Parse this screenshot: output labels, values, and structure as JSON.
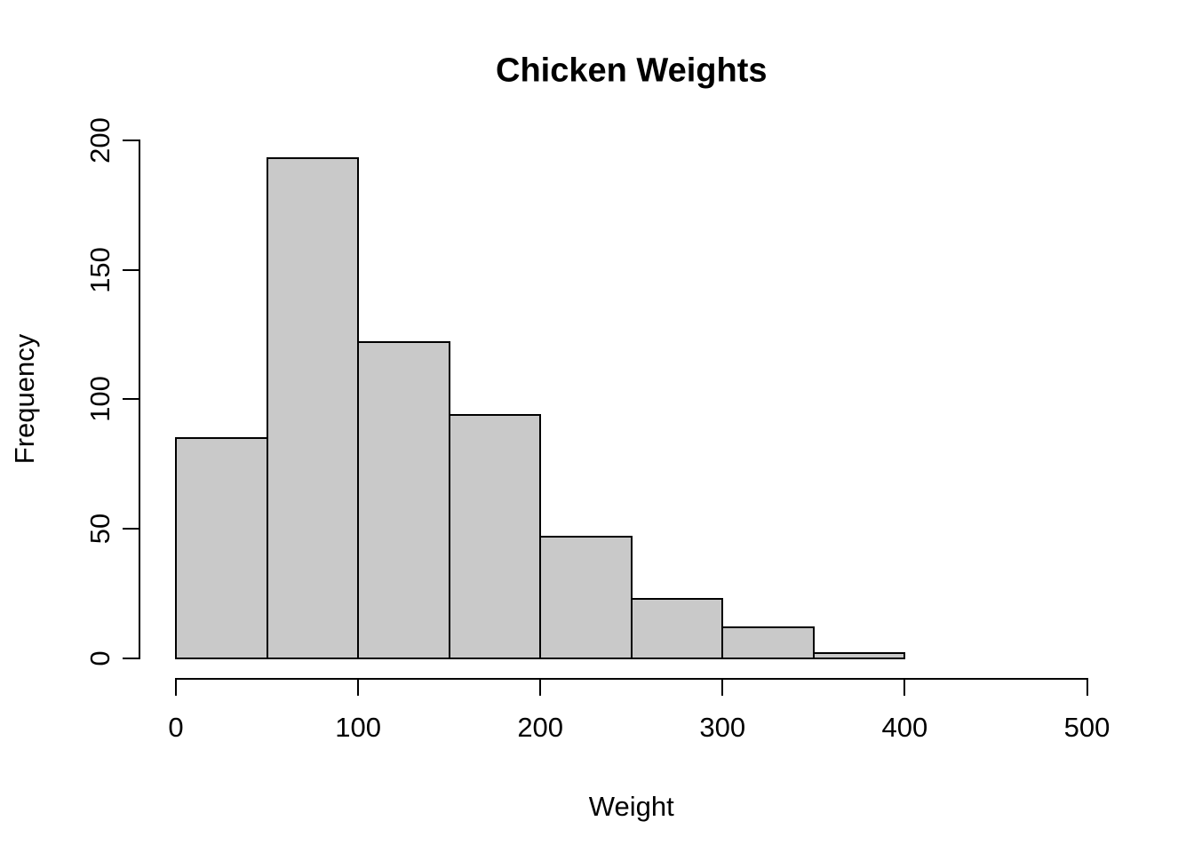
{
  "chart_data": {
    "type": "bar",
    "subtype": "histogram",
    "title": "Chicken Weights",
    "xlabel": "Weight",
    "ylabel": "Frequency",
    "bin_edges": [
      0,
      50,
      100,
      150,
      200,
      250,
      300,
      350,
      400
    ],
    "values": [
      85,
      193,
      122,
      94,
      47,
      23,
      12,
      2
    ],
    "x_ticks": [
      0,
      100,
      200,
      300,
      400,
      500
    ],
    "y_ticks": [
      0,
      50,
      100,
      150,
      200
    ],
    "xlim": [
      0,
      500
    ],
    "ylim": [
      0,
      200
    ],
    "grid": false,
    "legend": "none",
    "bar_fill_color": "#C9C9C9",
    "bar_border_color": "#000000",
    "axis_color": "#000000",
    "text_color": "#000000",
    "background_color": "#FFFFFF"
  }
}
